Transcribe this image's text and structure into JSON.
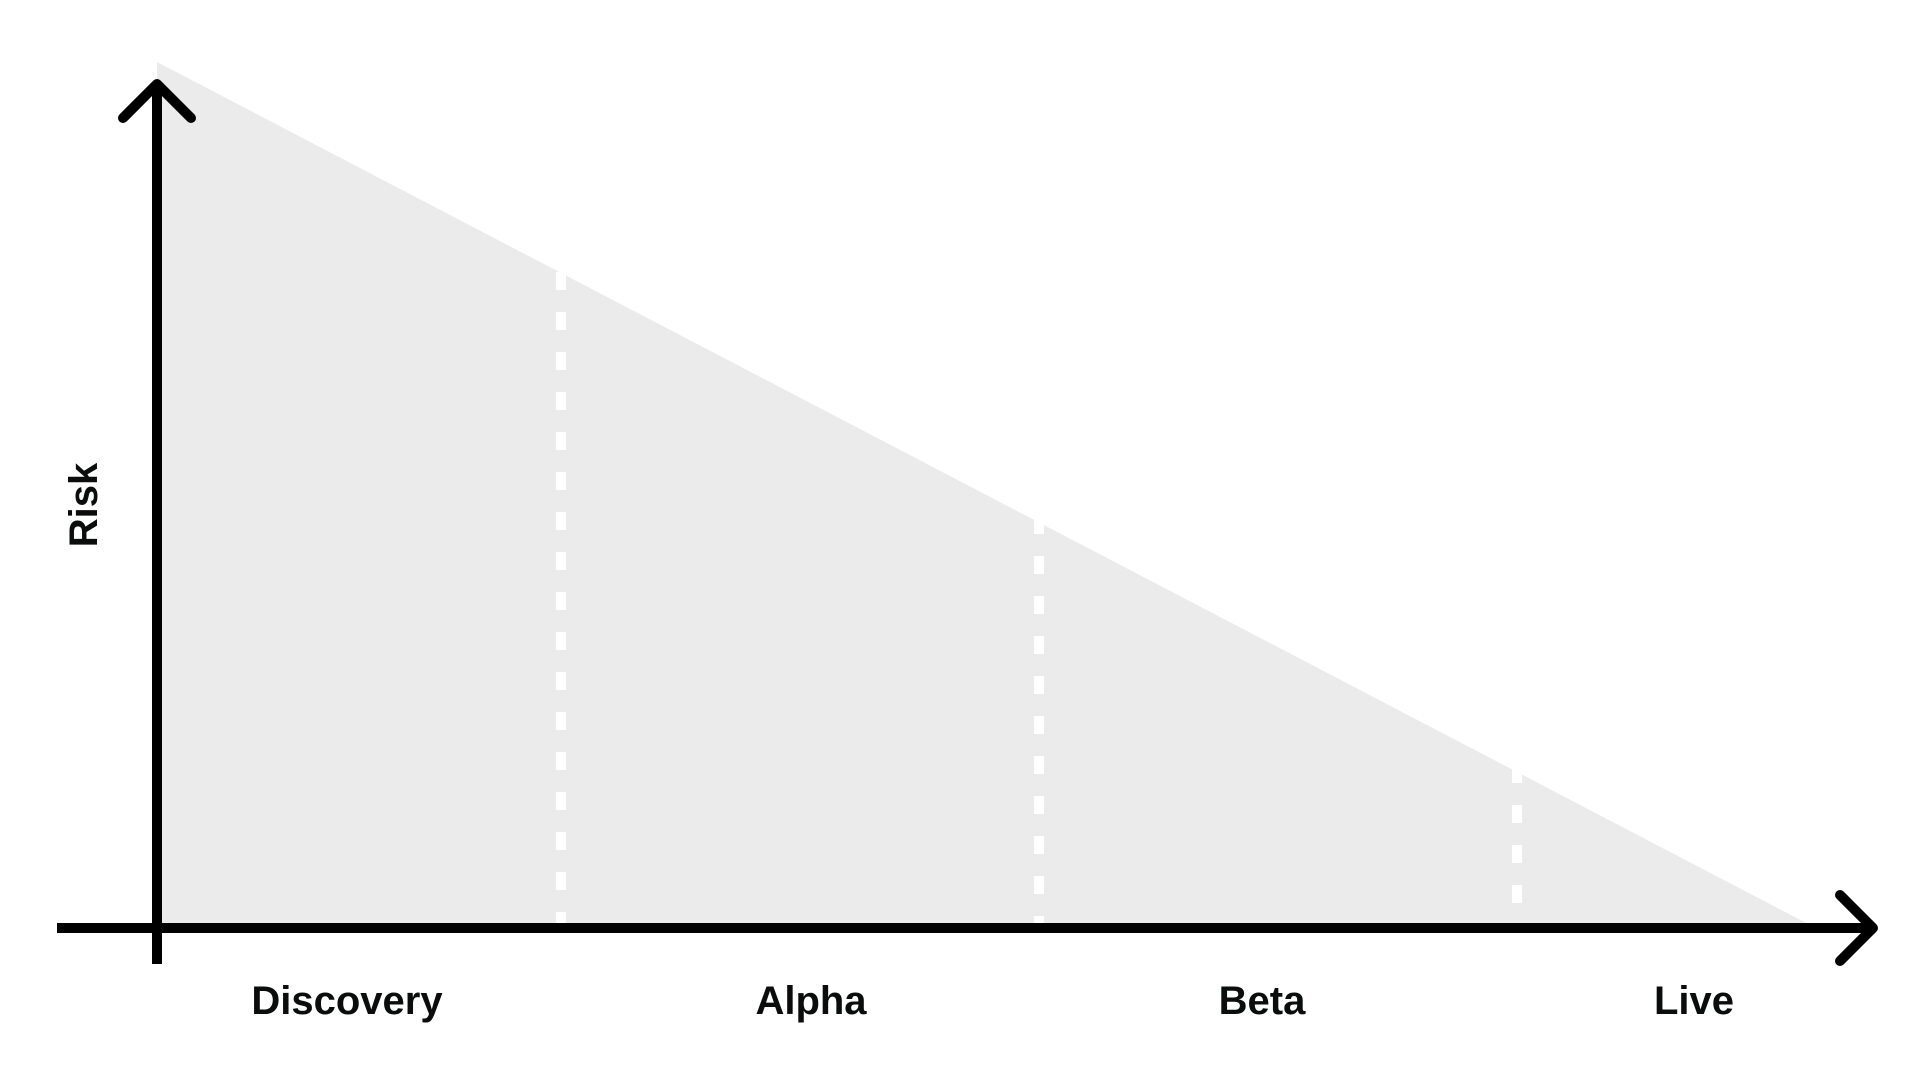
{
  "diagram": {
    "y_axis_label": "Risk",
    "phases": [
      {
        "label": "Discovery"
      },
      {
        "label": "Alpha"
      },
      {
        "label": "Beta"
      },
      {
        "label": "Live"
      }
    ],
    "colors": {
      "area_fill": "#ebebeb",
      "axis": "#000000",
      "divider": "#ffffff",
      "text": "#0b0c0c"
    }
  }
}
